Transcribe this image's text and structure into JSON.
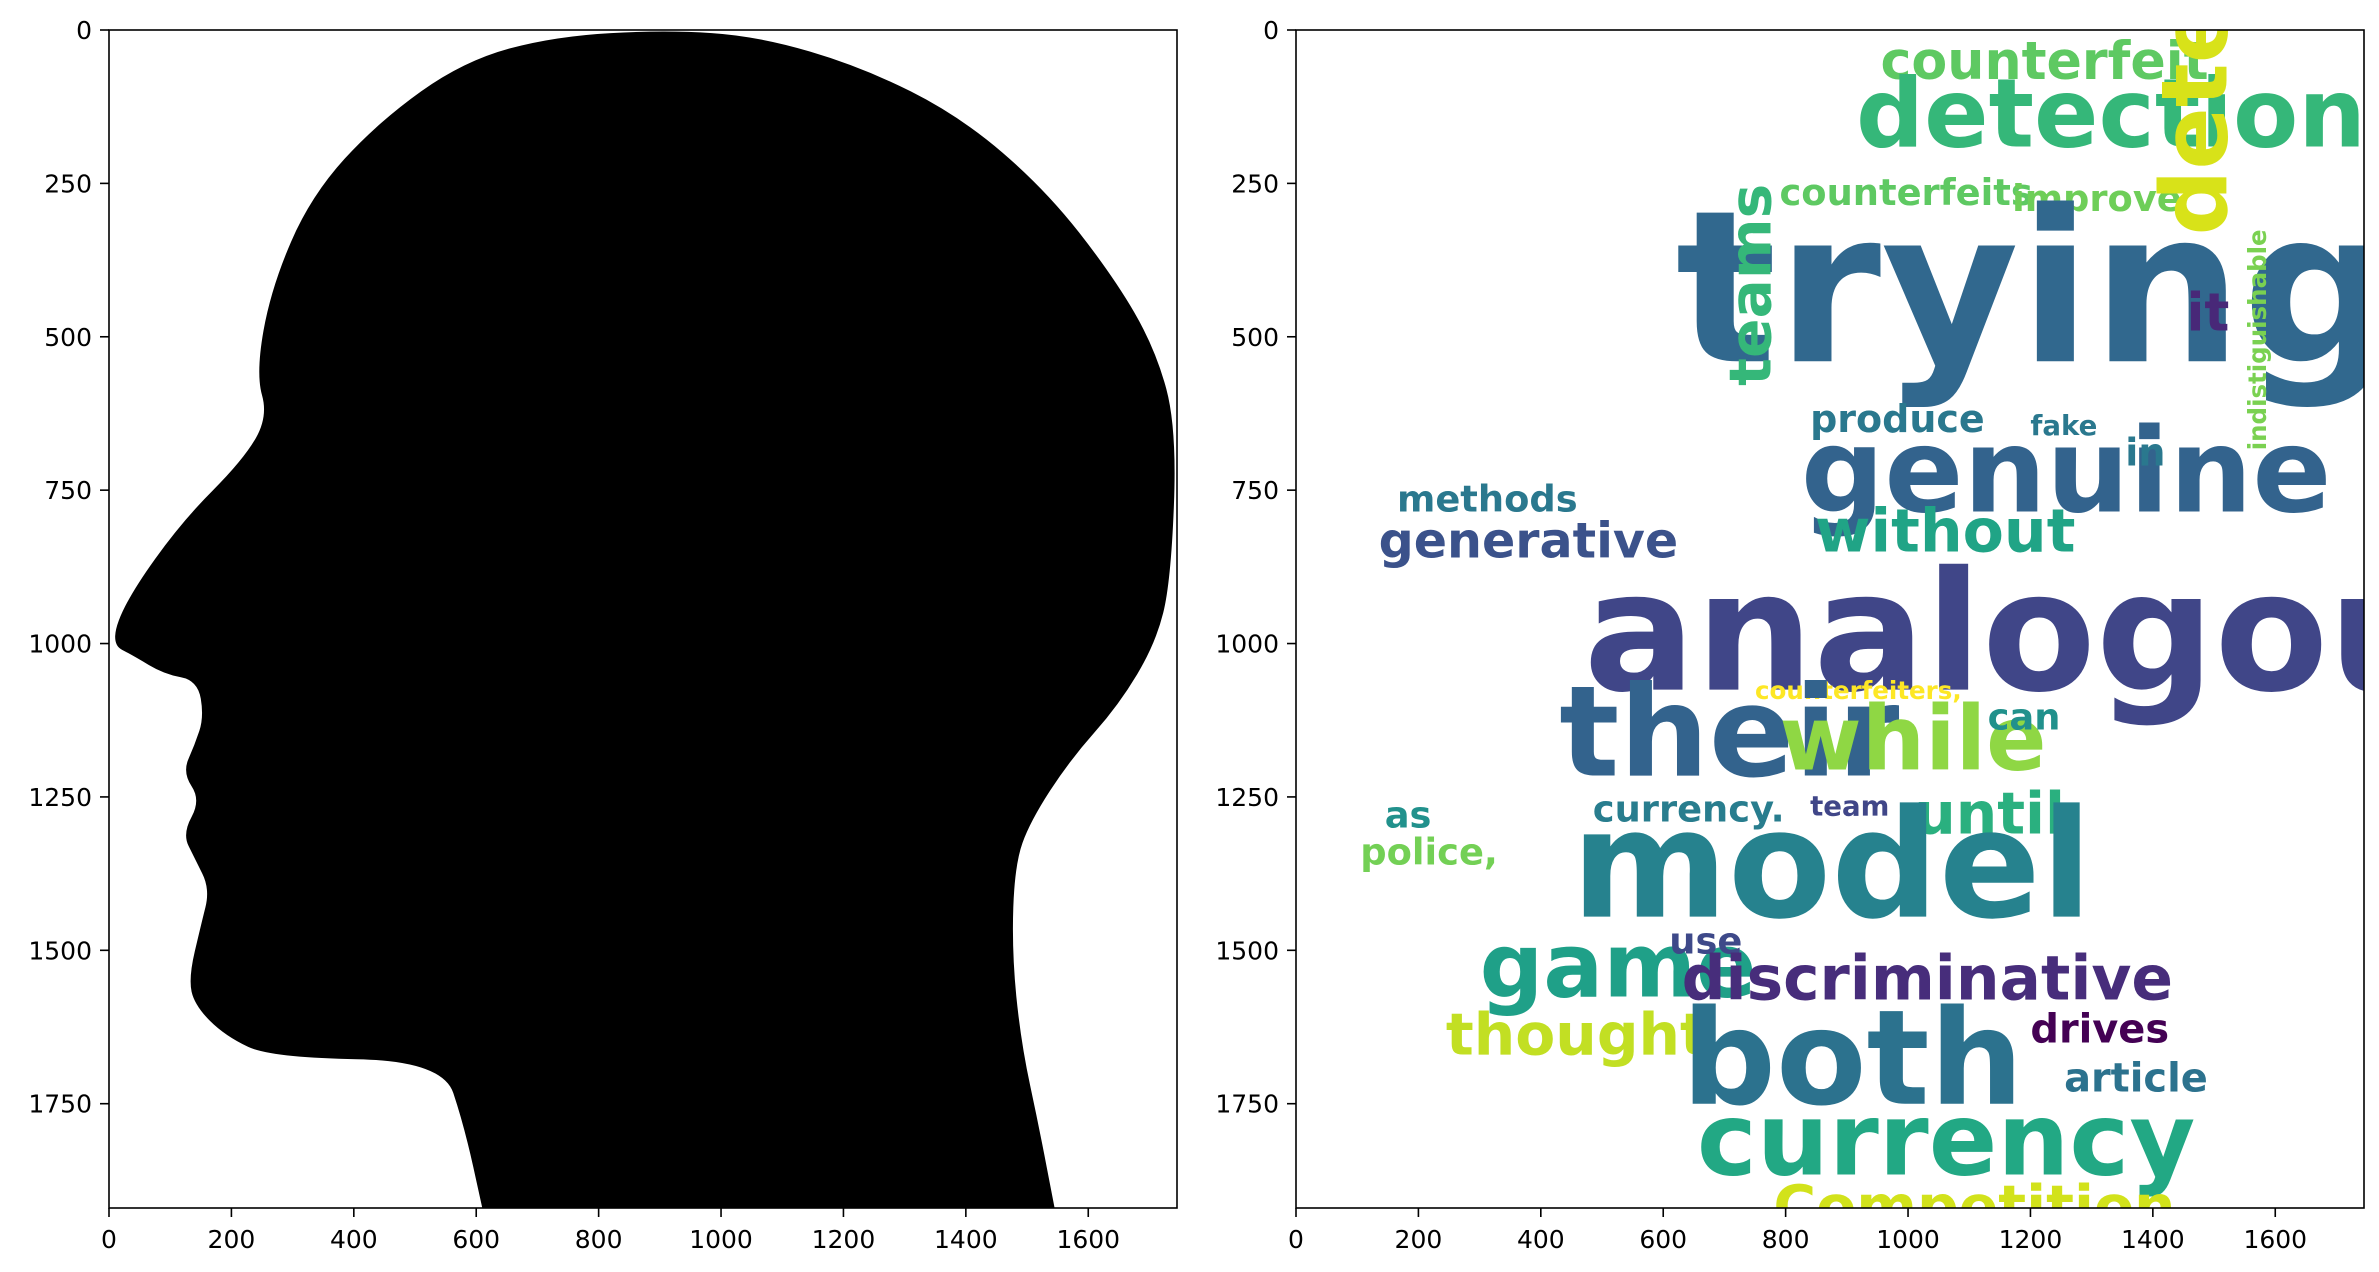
{
  "chart_data": [
    {
      "type": "image",
      "title": "",
      "xlabel": "",
      "ylabel": "",
      "xlim": [
        0,
        1745
      ],
      "ylim": [
        1920,
        0
      ],
      "xticks": [
        0,
        200,
        400,
        600,
        800,
        1000,
        1200,
        1400,
        1600
      ],
      "yticks": [
        0,
        250,
        500,
        750,
        1000,
        1250,
        1500,
        1750
      ],
      "grid": false,
      "silhouette": {
        "fill": "#000000",
        "outline": [
          [
            610,
            1920
          ],
          [
            580,
            1785
          ],
          [
            545,
            1680
          ],
          [
            265,
            1675
          ],
          [
            190,
            1640
          ],
          [
            140,
            1590
          ],
          [
            130,
            1545
          ],
          [
            150,
            1460
          ],
          [
            165,
            1400
          ],
          [
            140,
            1350
          ],
          [
            120,
            1310
          ],
          [
            150,
            1255
          ],
          [
            120,
            1210
          ],
          [
            140,
            1165
          ],
          [
            155,
            1120
          ],
          [
            145,
            1060
          ],
          [
            90,
            1050
          ],
          [
            40,
            1020
          ],
          [
            2,
            1000
          ],
          [
            30,
            925
          ],
          [
            120,
            800
          ],
          [
            220,
            700
          ],
          [
            260,
            630
          ],
          [
            240,
            560
          ],
          [
            265,
            420
          ],
          [
            330,
            270
          ],
          [
            440,
            150
          ],
          [
            580,
            50
          ],
          [
            730,
            10
          ],
          [
            910,
            0
          ],
          [
            1060,
            10
          ],
          [
            1230,
            60
          ],
          [
            1390,
            140
          ],
          [
            1530,
            260
          ],
          [
            1640,
            400
          ],
          [
            1710,
            520
          ],
          [
            1745,
            650
          ],
          [
            1735,
            900
          ],
          [
            1710,
            1000
          ],
          [
            1650,
            1100
          ],
          [
            1570,
            1190
          ],
          [
            1505,
            1290
          ],
          [
            1480,
            1360
          ],
          [
            1475,
            1500
          ],
          [
            1490,
            1650
          ],
          [
            1520,
            1790
          ],
          [
            1545,
            1920
          ]
        ]
      }
    },
    {
      "type": "wordcloud",
      "title": "",
      "xlabel": "",
      "ylabel": "",
      "xlim": [
        0,
        1745
      ],
      "ylim": [
        1920,
        0
      ],
      "xticks": [
        0,
        200,
        400,
        600,
        800,
        1000,
        1200,
        1400,
        1600
      ],
      "yticks": [
        0,
        250,
        500,
        750,
        1000,
        1250,
        1500,
        1750
      ],
      "grid": false,
      "words": [
        {
          "text": "counterfeit",
          "x": 955,
          "y": 80,
          "size": 85,
          "color": "#5ec962",
          "rotate": 0
        },
        {
          "text": "detection,",
          "x": 915,
          "y": 190,
          "size": 155,
          "color": "#35b779",
          "rotate": 0
        },
        {
          "text": "counterfeits",
          "x": 790,
          "y": 285,
          "size": 60,
          "color": "#5ec962",
          "rotate": 0
        },
        {
          "text": "improve",
          "x": 1170,
          "y": 295,
          "size": 60,
          "color": "#6ece58",
          "rotate": 0
        },
        {
          "text": "trying",
          "x": 620,
          "y": 540,
          "size": 345,
          "color": "#31688e",
          "rotate": 0
        },
        {
          "text": "detect",
          "x": 1520,
          "y": 335,
          "size": 150,
          "color": "#d8e219",
          "rotate": -90
        },
        {
          "text": "it",
          "x": 1455,
          "y": 490,
          "size": 85,
          "color": "#482878",
          "rotate": 0
        },
        {
          "text": "teams",
          "x": 775,
          "y": 580,
          "size": 95,
          "color": "#35b779",
          "rotate": -90
        },
        {
          "text": "produce",
          "x": 840,
          "y": 655,
          "size": 62,
          "color": "#2a788e",
          "rotate": 0
        },
        {
          "text": "fake",
          "x": 1200,
          "y": 660,
          "size": 45,
          "color": "#2a788e",
          "rotate": 0
        },
        {
          "text": "genuine",
          "x": 825,
          "y": 785,
          "size": 190,
          "color": "#33638d",
          "rotate": 0
        },
        {
          "text": "in",
          "x": 1355,
          "y": 710,
          "size": 62,
          "color": "#2a788e",
          "rotate": 0
        },
        {
          "text": "indistiguishable",
          "x": 1585,
          "y": 685,
          "size": 40,
          "color": "#7ad151",
          "rotate": -90
        },
        {
          "text": "methods",
          "x": 165,
          "y": 785,
          "size": 60,
          "color": "#2a788e",
          "rotate": 0
        },
        {
          "text": "without",
          "x": 848,
          "y": 850,
          "size": 98,
          "color": "#20a486",
          "rotate": 0
        },
        {
          "text": "generative",
          "x": 135,
          "y": 860,
          "size": 80,
          "color": "#3b528b",
          "rotate": 0
        },
        {
          "text": "analogous",
          "x": 470,
          "y": 1075,
          "size": 270,
          "color": "#404688",
          "rotate": 0
        },
        {
          "text": "counterfeiters,",
          "x": 750,
          "y": 1090,
          "size": 40,
          "color": "#fde725",
          "rotate": 0
        },
        {
          "text": "their",
          "x": 430,
          "y": 1215,
          "size": 205,
          "color": "#33638d",
          "rotate": 0
        },
        {
          "text": "while",
          "x": 790,
          "y": 1205,
          "size": 145,
          "color": "#8fd744",
          "rotate": 0
        },
        {
          "text": "can",
          "x": 1130,
          "y": 1140,
          "size": 60,
          "color": "#21918c",
          "rotate": 0
        },
        {
          "text": "as",
          "x": 145,
          "y": 1300,
          "size": 60,
          "color": "#21918c",
          "rotate": 0
        },
        {
          "text": "currency.",
          "x": 485,
          "y": 1290,
          "size": 60,
          "color": "#287d8e",
          "rotate": 0
        },
        {
          "text": "team",
          "x": 840,
          "y": 1280,
          "size": 45,
          "color": "#404688",
          "rotate": 0
        },
        {
          "text": "until",
          "x": 1010,
          "y": 1310,
          "size": 95,
          "color": "#2ab07f",
          "rotate": 0
        },
        {
          "text": "police,",
          "x": 105,
          "y": 1360,
          "size": 60,
          "color": "#73d055",
          "rotate": 0
        },
        {
          "text": "model",
          "x": 450,
          "y": 1445,
          "size": 245,
          "color": "#26828e",
          "rotate": 0
        },
        {
          "text": "game",
          "x": 300,
          "y": 1575,
          "size": 145,
          "color": "#1fa088",
          "rotate": 0
        },
        {
          "text": "use",
          "x": 610,
          "y": 1505,
          "size": 60,
          "color": "#3e4989",
          "rotate": 0
        },
        {
          "text": "discriminative",
          "x": 630,
          "y": 1580,
          "size": 100,
          "color": "#472d7b",
          "rotate": 0
        },
        {
          "text": "thought",
          "x": 245,
          "y": 1670,
          "size": 95,
          "color": "#c2df23",
          "rotate": 0
        },
        {
          "text": "both",
          "x": 630,
          "y": 1750,
          "size": 215,
          "color": "#2c728e",
          "rotate": 0
        },
        {
          "text": "drives",
          "x": 1200,
          "y": 1650,
          "size": 65,
          "color": "#440154",
          "rotate": 0
        },
        {
          "text": "article",
          "x": 1255,
          "y": 1730,
          "size": 65,
          "color": "#2c728e",
          "rotate": 0
        },
        {
          "text": "currency",
          "x": 655,
          "y": 1865,
          "size": 165,
          "color": "#22a884",
          "rotate": 0
        },
        {
          "text": "Competition",
          "x": 780,
          "y": 1950,
          "size": 95,
          "color": "#d2e21b",
          "rotate": 0
        }
      ]
    }
  ]
}
